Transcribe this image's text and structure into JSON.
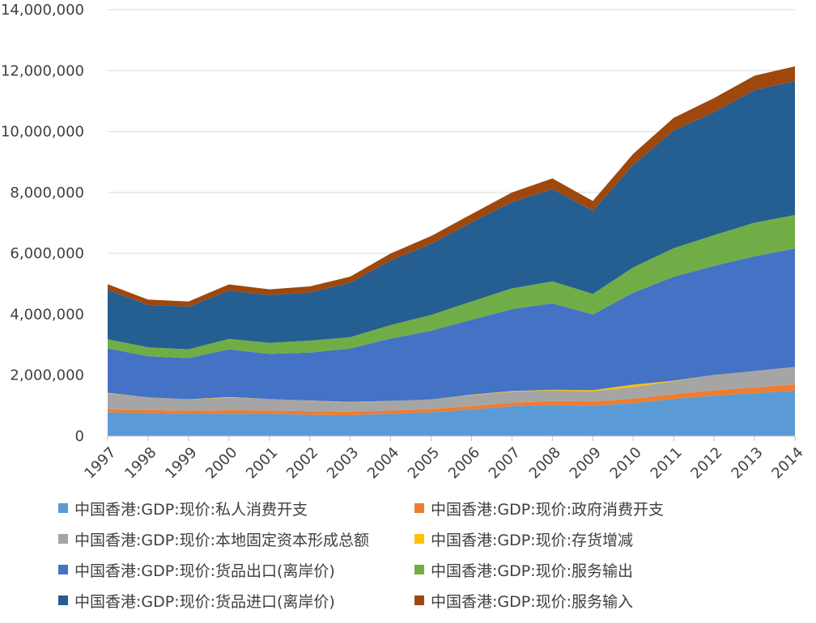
{
  "chart_data": {
    "type": "area",
    "stacked": true,
    "title": "",
    "xlabel": "",
    "ylabel": "",
    "ylim": [
      0,
      14000000
    ],
    "y_ticks": [
      0,
      2000000,
      4000000,
      6000000,
      8000000,
      10000000,
      12000000,
      14000000
    ],
    "y_tick_labels": [
      "0",
      "2,000,000",
      "4,000,000",
      "6,000,000",
      "8,000,000",
      "10,000,000",
      "12,000,000",
      "14,000,000"
    ],
    "grid": true,
    "legend_position": "bottom",
    "categories": [
      "1997",
      "1998",
      "1999",
      "2000",
      "2001",
      "2002",
      "2003",
      "2004",
      "2005",
      "2006",
      "2007",
      "2008",
      "2009",
      "2010",
      "2011",
      "2012",
      "2013",
      "2014"
    ],
    "series": [
      {
        "name": "中国香港:GDP:现价:私人消费开支",
        "color": "#5b9bd5",
        "values": [
          780000,
          750000,
          730000,
          740000,
          730000,
          700000,
          690000,
          730000,
          780000,
          870000,
          980000,
          1020000,
          1000000,
          1080000,
          1220000,
          1330000,
          1410000,
          1490000
        ]
      },
      {
        "name": "中国香港:GDP:现价:政府消费开支",
        "color": "#ed7d31",
        "values": [
          100000,
          105000,
          105000,
          110000,
          115000,
          115000,
          110000,
          110000,
          110000,
          110000,
          120000,
          130000,
          140000,
          150000,
          160000,
          170000,
          190000,
          210000
        ]
      },
      {
        "name": "中国香港:GDP:现价:本地固定资本形成总额",
        "color": "#a5a5a5",
        "values": [
          520000,
          430000,
          370000,
          410000,
          380000,
          340000,
          310000,
          310000,
          330000,
          370000,
          360000,
          350000,
          330000,
          380000,
          420000,
          520000,
          530000,
          560000
        ]
      },
      {
        "name": "中国香港:GDP:现价:存货增减",
        "color": "#ffc000",
        "values": [
          20000,
          -10000,
          5000,
          20000,
          -5000,
          10000,
          15000,
          5000,
          -10000,
          10000,
          20000,
          20000,
          40000,
          80000,
          20000,
          -10000,
          5000,
          10000
        ]
      },
      {
        "name": "中国香港:GDP:现价:货品出口(离岸价)",
        "color": "#4472c4",
        "values": [
          1460000,
          1350000,
          1350000,
          1570000,
          1480000,
          1580000,
          1750000,
          2050000,
          2250000,
          2460000,
          2690000,
          2840000,
          2480000,
          3020000,
          3410000,
          3580000,
          3770000,
          3890000
        ]
      },
      {
        "name": "中国香港:GDP:现价:服务输出",
        "color": "#70ad47",
        "values": [
          300000,
          290000,
          290000,
          340000,
          360000,
          390000,
          370000,
          440000,
          520000,
          600000,
          680000,
          720000,
          680000,
          830000,
          940000,
          1010000,
          1100000,
          1100000
        ]
      },
      {
        "name": "中国香港:GDP:现价:货品进口(离岸价)",
        "color": "#255e91",
        "values": [
          1620000,
          1390000,
          1400000,
          1590000,
          1570000,
          1580000,
          1790000,
          2120000,
          2330000,
          2600000,
          2830000,
          3030000,
          2720000,
          3370000,
          3860000,
          4040000,
          4360000,
          4400000
        ]
      },
      {
        "name": "中国香港:GDP:现价:服务输入",
        "color": "#9e480e",
        "values": [
          190000,
          180000,
          170000,
          200000,
          190000,
          200000,
          200000,
          230000,
          260000,
          270000,
          320000,
          350000,
          330000,
          360000,
          420000,
          460000,
          470000,
          480000
        ]
      }
    ]
  }
}
